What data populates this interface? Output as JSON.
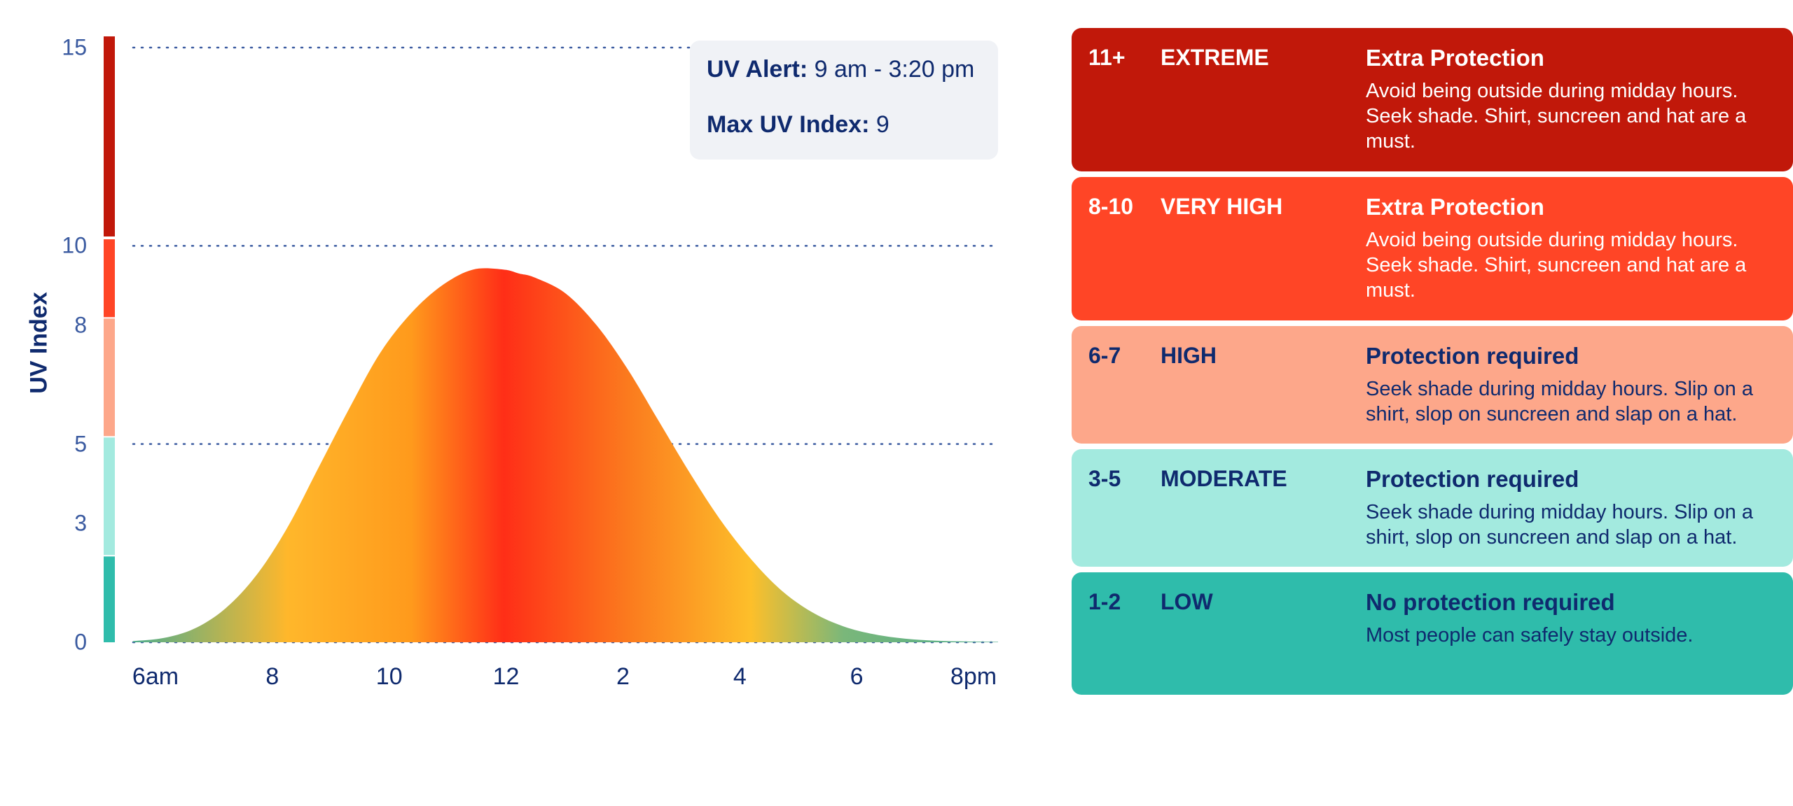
{
  "colors": {
    "text_dark": "#0f2a6e",
    "grid": "#3a5aa0",
    "low": "#2fbcab",
    "moderate": "#a3eadf",
    "high": "#fda78a",
    "very_high": "#ff4526",
    "extreme": "#c1180a",
    "info_box_bg": "#f0f2f6"
  },
  "info": {
    "alert_label": "UV Alert:",
    "alert_value": "9 am - 3:20 pm",
    "max_label": "Max UV Index:",
    "max_value": "9"
  },
  "chart_data": {
    "type": "area",
    "ylabel": "UV Index",
    "xlabel": "",
    "title": "",
    "x_ticks": [
      "6am",
      "8",
      "10",
      "12",
      "2",
      "4",
      "6",
      "8pm"
    ],
    "y_ticks": [
      "0",
      "3",
      "5",
      "8",
      "10",
      "15"
    ],
    "y_tick_values": [
      0,
      3,
      5,
      8,
      10,
      15
    ],
    "dotted_gridlines_at": [
      0,
      5,
      10,
      15
    ],
    "ylim": [
      0,
      15.5
    ],
    "xlim_hours": [
      6,
      20
    ],
    "x_hours": [
      6,
      6.5,
      7,
      7.5,
      8,
      8.5,
      9,
      9.5,
      10,
      10.5,
      11,
      11.5,
      12,
      12.25,
      12.5,
      13,
      13.5,
      14,
      14.5,
      15,
      15.5,
      16,
      16.5,
      17,
      17.5,
      18,
      18.5,
      19,
      19.5,
      20
    ],
    "uv_values": [
      0.03,
      0.11,
      0.35,
      0.86,
      1.7,
      2.9,
      4.4,
      5.9,
      7.3,
      8.3,
      9.0,
      9.4,
      9.4,
      9.3,
      9.2,
      8.8,
      8.0,
      6.9,
      5.6,
      4.3,
      3.1,
      2.1,
      1.3,
      0.75,
      0.4,
      0.2,
      0.09,
      0.04,
      0.02,
      0.01
    ],
    "fill_gradient_hours": [
      8.5,
      10.5,
      12,
      14,
      16,
      17.5
    ],
    "fill_gradient_colors": [
      "#ffb72b",
      "#ff9a1c",
      "#ff2e17",
      "#fb7a1e",
      "#fdbf2a",
      "#7ab77a"
    ],
    "fill_gradient_ends_color": "#4fae8c",
    "scale_bar_bands": [
      {
        "from": 0,
        "to": 2.2,
        "color": "#2fbcab"
      },
      {
        "from": 2.2,
        "to": 5.2,
        "color": "#a3eadf"
      },
      {
        "from": 5.2,
        "to": 8.2,
        "color": "#fda78a"
      },
      {
        "from": 8.2,
        "to": 10.2,
        "color": "#ff4526"
      },
      {
        "from": 10.2,
        "to": 15.5,
        "color": "#c1180a"
      }
    ]
  },
  "categories": [
    {
      "range": "11+",
      "level": "EXTREME",
      "heading": "Extra Protection",
      "description": "Avoid being outside during midday hours. Seek shade. Shirt, suncreen and hat are a must.",
      "bg": "#c1180a",
      "text": "#ffffff"
    },
    {
      "range": "8-10",
      "level": "VERY HIGH",
      "heading": "Extra Protection",
      "description": "Avoid being outside during midday hours. Seek shade. Shirt, suncreen and hat are a must.",
      "bg": "#ff4526",
      "text": "#ffffff"
    },
    {
      "range": "6-7",
      "level": "HIGH",
      "heading": "Protection required",
      "description": "Seek shade during midday hours. Slip on a shirt, slop on suncreen and slap on a hat.",
      "bg": "#fda78a",
      "text": "#0f2a6e"
    },
    {
      "range": "3-5",
      "level": "MODERATE",
      "heading": "Protection required",
      "description": "Seek shade during midday hours. Slip on a shirt, slop on suncreen and slap on a hat.",
      "bg": "#a3eadf",
      "text": "#0f2a6e"
    },
    {
      "range": "1-2",
      "level": "LOW",
      "heading": "No protection required",
      "description": "Most people can safely stay outside.",
      "bg": "#2fbcab",
      "text": "#0f2a6e"
    }
  ]
}
